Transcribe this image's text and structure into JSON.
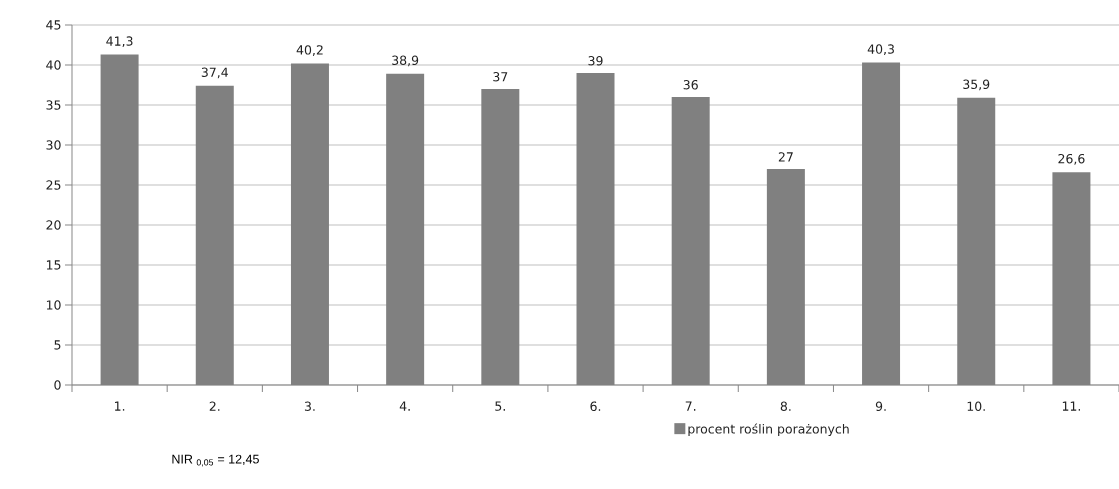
{
  "chart_data": {
    "type": "bar",
    "categories": [
      "1.",
      "2.",
      "3.",
      "4.",
      "5.",
      "6.",
      "7.",
      "8.",
      "9.",
      "10.",
      "11."
    ],
    "series": [
      {
        "name": "procent roślin porażonych",
        "color": "#808080",
        "values": [
          41.3,
          37.4,
          40.2,
          38.9,
          37,
          39,
          36,
          27,
          40.3,
          35.9,
          26.6
        ],
        "value_labels": [
          "41,3",
          "37,4",
          "40,2",
          "38,9",
          "37",
          "39",
          "36",
          "27",
          "40,3",
          "35,9",
          "26,6"
        ]
      }
    ],
    "ylim": [
      0,
      45
    ],
    "yticks": [
      0,
      5,
      10,
      15,
      20,
      25,
      30,
      35,
      40,
      45
    ],
    "grid": "y",
    "legend": "bottom",
    "annotations": [
      "NIR $_{0,05}$ = 12,45"
    ]
  }
}
